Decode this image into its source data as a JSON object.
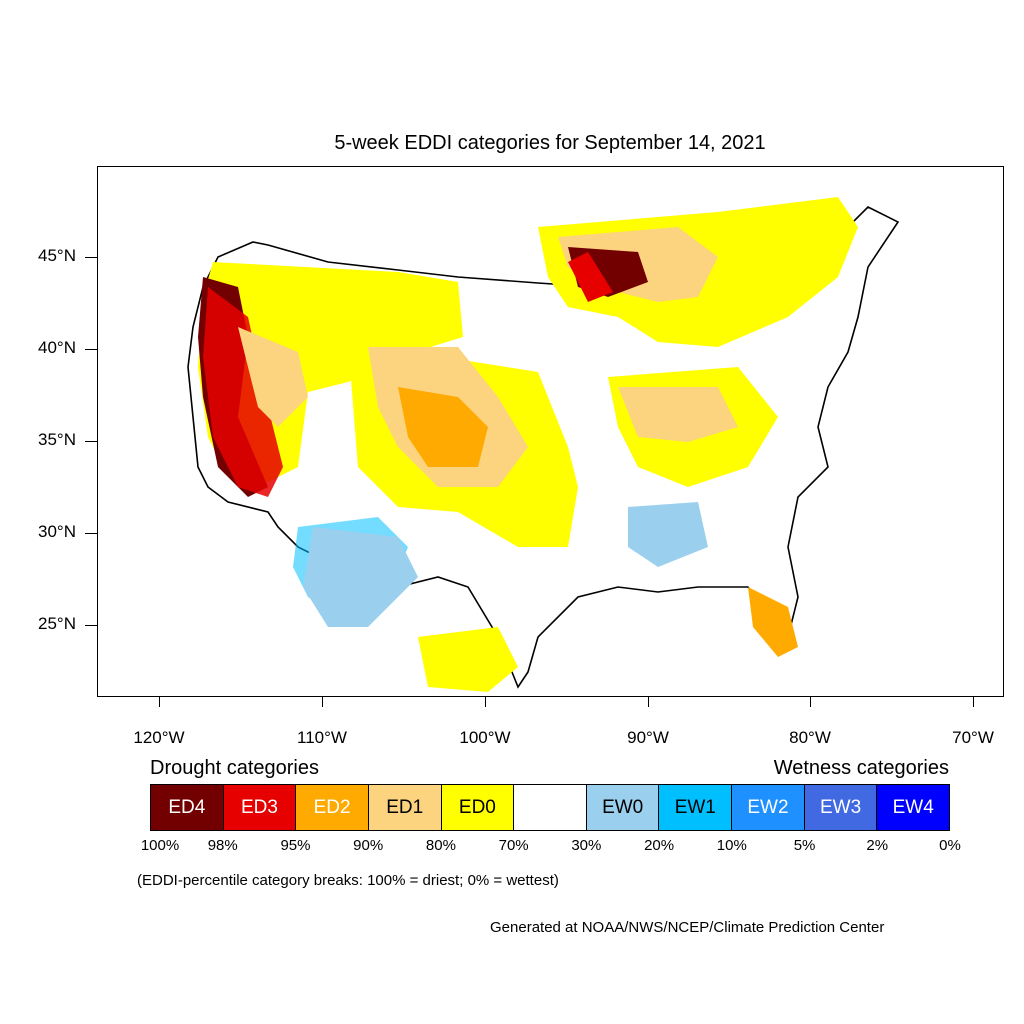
{
  "title": "5-week EDDI categories for September 14, 2021",
  "lat_labels": [
    "45°N",
    "40°N",
    "35°N",
    "30°N",
    "25°N"
  ],
  "lon_labels": [
    "120°W",
    "110°W",
    "100°W",
    "90°W",
    "80°W",
    "70°W"
  ],
  "legend": {
    "drought_heading": "Drought categories",
    "wetness_heading": "Wetness categories",
    "categories": [
      {
        "label": "ED4",
        "color": "#730000",
        "text_color": "#ffffff"
      },
      {
        "label": "ED3",
        "color": "#e60000",
        "text_color": "#ffffff"
      },
      {
        "label": "ED2",
        "color": "#ffaa00",
        "text_color": "#ffffff"
      },
      {
        "label": "ED1",
        "color": "#fcd37f",
        "text_color": "#000000"
      },
      {
        "label": "ED0",
        "color": "#ffff00",
        "text_color": "#000000"
      },
      {
        "label": "",
        "color": "#ffffff",
        "text_color": "#000000"
      },
      {
        "label": "EW0",
        "color": "#9acfee",
        "text_color": "#000000"
      },
      {
        "label": "EW1",
        "color": "#00bfff",
        "text_color": "#000000"
      },
      {
        "label": "EW2",
        "color": "#1e90ff",
        "text_color": "#ffffff"
      },
      {
        "label": "EW3",
        "color": "#4169e1",
        "text_color": "#ffffff"
      },
      {
        "label": "EW4",
        "color": "#0000ff",
        "text_color": "#ffffff"
      }
    ],
    "breaks": [
      "100%",
      "98%",
      "95%",
      "90%",
      "80%",
      "70%",
      "30%",
      "20%",
      "10%",
      "5%",
      "2%",
      "0%"
    ]
  },
  "note": "(EDDI-percentile category breaks: 100% = driest; 0% = wettest)",
  "credit": "Generated at NOAA/NWS/NCEP/Climate Prediction Center"
}
